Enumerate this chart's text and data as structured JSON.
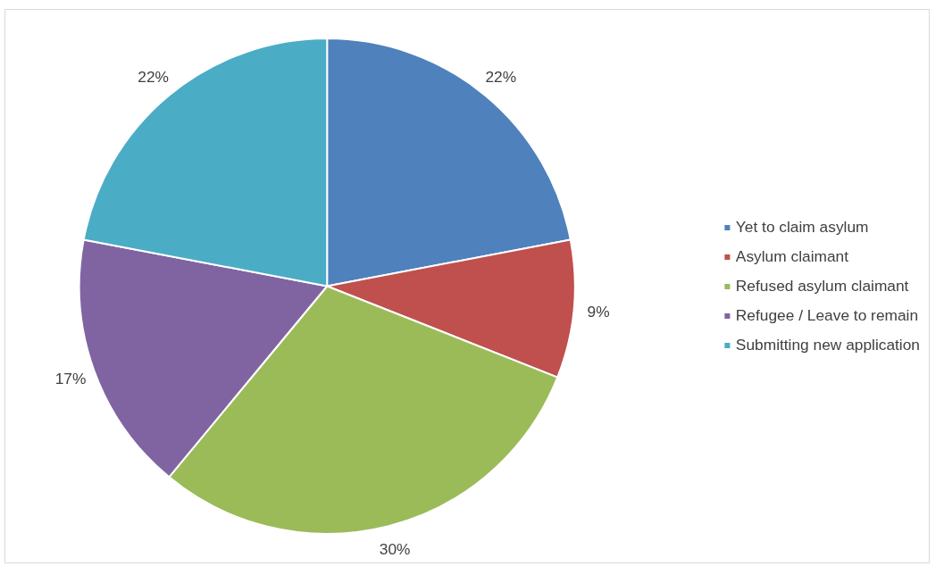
{
  "chart_data": {
    "type": "pie",
    "categories": [
      "Yet to claim asylum",
      "Asylum claimant",
      "Refused asylum claimant",
      "Refugee / Leave to remain",
      "Submitting new application"
    ],
    "values": [
      22,
      9,
      30,
      17,
      22
    ],
    "colors": [
      "#4f81bd",
      "#c0504d",
      "#9bbb59",
      "#8064a2",
      "#4bacc6"
    ],
    "value_labels": [
      "22%",
      "9%",
      "30%",
      "17%",
      "22%"
    ],
    "legend": "right"
  }
}
